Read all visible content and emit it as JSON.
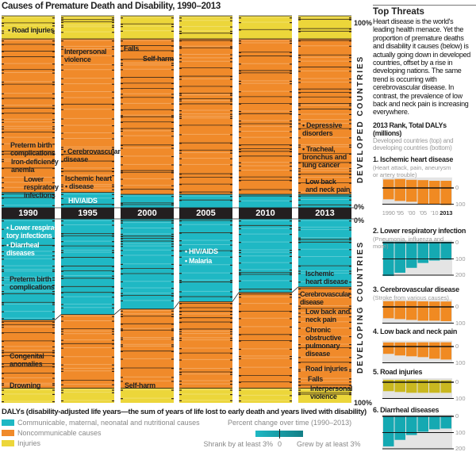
{
  "title": "Causes of Premature Death and Disability, 1990–2013",
  "colors": {
    "communicable": "#1fb8c4",
    "noncommunicable": "#f08a2a",
    "injuries": "#ecd63a",
    "year_bar": "#231f20",
    "mini_communicable": "#15a9b2",
    "mini_noncommunicable": "#f08a22",
    "mini_injuries": "#c9b820"
  },
  "axis": {
    "top_pct": "100%",
    "mid_pct_top": "0%",
    "mid_pct_bottom": "0%",
    "bottom_pct": "100%",
    "developed_label": "DEVELOPED COUNTRIES",
    "developing_label": "DEVELOPING COUNTRIES"
  },
  "labels": {
    "dev_road_injuries": "• Road injuries",
    "dev_interpersonal": "Interpersonal\nviolence",
    "dev_falls": "Falls",
    "dev_selfharm": "Self-harm",
    "dev_depressive": "• Depressive\n  disorders",
    "dev_tracheal": "• Tracheal,\n  bronchus and\n  lung cancer",
    "dev_lowback": "Low back\nand neck pain",
    "dev_preterm": "Preterm birth\ncomplications",
    "dev_iron": "Iron-deficiency\nanemia",
    "dev_lri": "Lower\nrespiratory\ninfections",
    "dev_cerebro": "• Cerebrovascular\n  disease",
    "dev_ischemic": "Ischemic heart\n• disease",
    "dev_hiv": "HIV/AIDS",
    "dvg_lri": "• Lower respira-\n  tory infections",
    "dvg_diarrheal": "• Diarrheal\n  diseases",
    "dvg_hiv": "• HIV/AIDS",
    "dvg_malaria": "• Malaria",
    "dvg_preterm": "Preterm birth\ncomplications",
    "dvg_ischemic": "Ischemic\nheart disease",
    "dvg_cerebro": "Cerebrovascular\ndisease",
    "dvg_lowback": "Low back and\nneck pain",
    "dvg_copd": "Chronic\nobstructive\npulmonary\ndisease",
    "dvg_congenital": "Congenital\nanomalies",
    "dvg_drowning": "Drowning",
    "dvg_selfharm": "Self-harm",
    "dvg_road": "Road injuries",
    "dvg_falls": "Falls",
    "dvg_interpersonal": "Interpersonal\nviolence"
  },
  "sidebar": {
    "heading": "Top Threats",
    "intro": "Heart disease is the world's leading health menace. Yet the proportion of premature deaths and disability it causes (below) is actually going down in developed countries, offset by a rise in developing nations. The same trend is occurring with cerebrovascular disease. In contrast, the prevalence of low back and neck pain is increasing everywhere.",
    "rank_title": "2013 Rank, Total DALYs (millions)",
    "rank_sub": "Developed countries (top) and developing countries (bottom)",
    "year_ticks": [
      "1990",
      "'95",
      "'00",
      "'05",
      "'10",
      "2013"
    ]
  },
  "legend": {
    "heading": "DALYs (disability-adjusted life years—the sum of years of life lost to early death and years lived with disability)",
    "items": [
      "Communicable, maternal, neonatal and nutritional causes",
      "Noncommunicable causes",
      "Injuries"
    ],
    "change_title": "Percent change over time (1990–2013)",
    "shrank": "Shrank by at least 3%",
    "zero": "0",
    "grew": "Grew by at least 3%"
  },
  "chart_data": [
    {
      "type": "area",
      "title": "Causes of Premature Death and Disability, 1990–2013",
      "categories": [
        "1990",
        "1995",
        "2000",
        "2005",
        "2010",
        "2013"
      ],
      "ylim": [
        0,
        100
      ],
      "unit": "% of DALYs",
      "developed": {
        "series": [
          {
            "name": "Injuries",
            "values": [
              12,
              12,
              12,
              12,
              12,
              12
            ]
          },
          {
            "name": "Noncommunicable causes",
            "values": [
              80,
              80,
              81,
              81,
              81,
              81
            ]
          },
          {
            "name": "Communicable, maternal, neonatal and nutritional causes",
            "values": [
              8,
              8,
              7,
              7,
              7,
              7
            ]
          }
        ]
      },
      "developing": {
        "series": [
          {
            "name": "Communicable, maternal, neonatal and nutritional causes",
            "values": [
              55,
              52,
              49,
              45,
              40,
              37
            ]
          },
          {
            "name": "Noncommunicable causes",
            "values": [
              37,
              40,
              43,
              47,
              52,
              55
            ]
          },
          {
            "name": "Injuries",
            "values": [
              8,
              8,
              8,
              8,
              8,
              8
            ]
          }
        ]
      }
    },
    {
      "type": "bar",
      "title": "1. Ischemic heart disease",
      "subtitle": "(Heart attack, pain, aneurysm or artery trouble)",
      "group": "noncommunicable",
      "categories": [
        "1990",
        "'95",
        "'00",
        "'05",
        "'10",
        "2013"
      ],
      "developed": [
        52,
        55,
        50,
        48,
        44,
        44
      ],
      "developing": [
        70,
        80,
        85,
        100,
        100,
        105
      ],
      "ticks": [
        "0",
        "100"
      ]
    },
    {
      "type": "bar",
      "title": "2. Lower respiratory infection",
      "subtitle": "(Pneumonia, influenza and more)",
      "group": "communicable",
      "categories": [
        "1990",
        "'95",
        "'00",
        "'05",
        "'10",
        "2013"
      ],
      "developed": [
        6,
        6,
        5,
        5,
        5,
        5
      ],
      "developing": [
        205,
        185,
        155,
        125,
        110,
        105
      ],
      "ticks": [
        "0",
        "100",
        "200"
      ]
    },
    {
      "type": "bar",
      "title": "3. Cerebrovascular disease",
      "subtitle": "(Stroke from various causes)",
      "group": "noncommunicable",
      "categories": [
        "1990",
        "'95",
        "'00",
        "'05",
        "'10",
        "2013"
      ],
      "developed": [
        35,
        36,
        36,
        34,
        33,
        33
      ],
      "developing": [
        70,
        75,
        80,
        85,
        85,
        88
      ],
      "ticks": [
        "0",
        "100"
      ]
    },
    {
      "type": "bar",
      "title": "4. Low back and neck pain",
      "subtitle": "",
      "group": "noncommunicable",
      "categories": [
        "1990",
        "'95",
        "'00",
        "'05",
        "'10",
        "2013"
      ],
      "developed": [
        25,
        25,
        25,
        26,
        26,
        26
      ],
      "developing": [
        45,
        55,
        60,
        65,
        75,
        80
      ],
      "ticks": [
        "0",
        "100"
      ]
    },
    {
      "type": "bar",
      "title": "5. Road injuries",
      "subtitle": "",
      "group": "injuries",
      "categories": [
        "1990",
        "'95",
        "'00",
        "'05",
        "'10",
        "2013"
      ],
      "developed": [
        15,
        15,
        15,
        15,
        13,
        12
      ],
      "developing": [
        55,
        60,
        65,
        65,
        65,
        65
      ],
      "ticks": [
        "0",
        "100"
      ]
    },
    {
      "type": "bar",
      "title": "6. Diarrheal diseases",
      "subtitle": "",
      "group": "communicable",
      "categories": [
        "1990",
        "'95",
        "'00",
        "'05",
        "'10",
        "2013"
      ],
      "developed": [
        2,
        2,
        2,
        2,
        2,
        2
      ],
      "developing": [
        185,
        145,
        115,
        95,
        80,
        75
      ],
      "ticks": [
        "0",
        "100",
        "200"
      ]
    }
  ]
}
